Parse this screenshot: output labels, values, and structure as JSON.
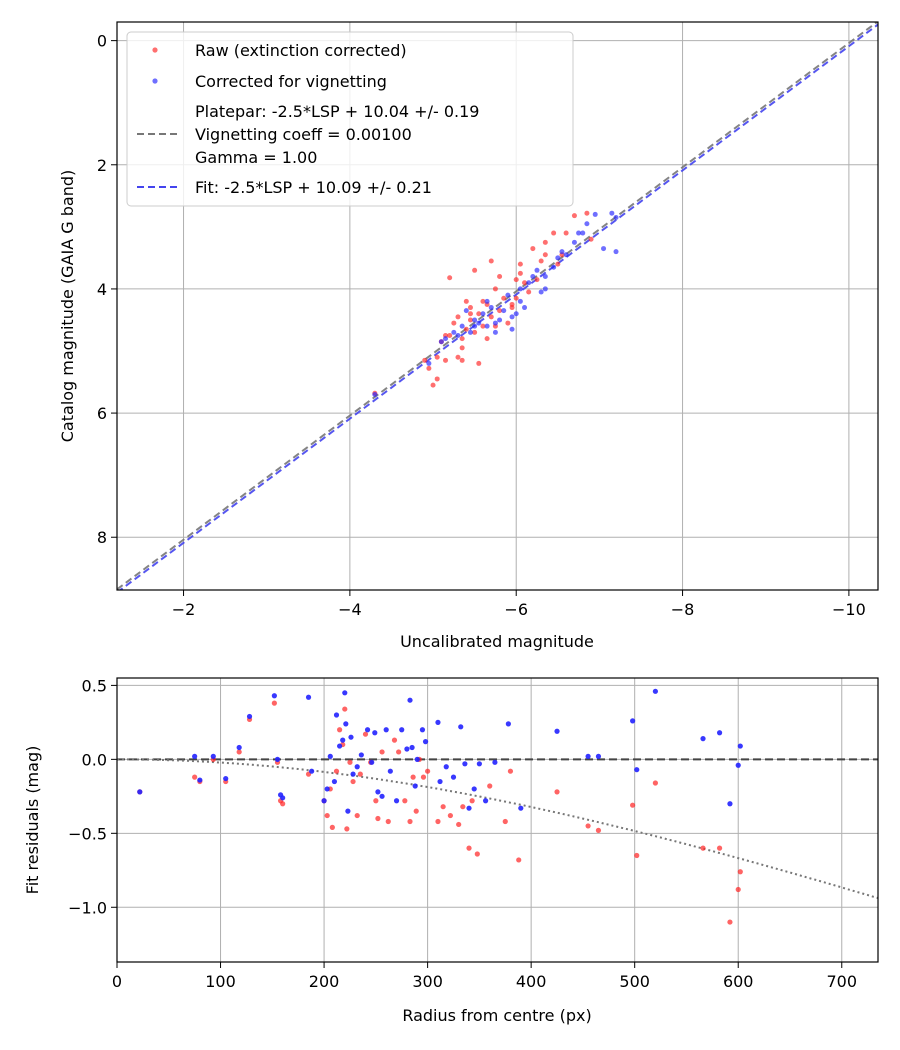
{
  "chart_data": [
    {
      "type": "scatter",
      "xlabel": "Uncalibrated magnitude",
      "ylabel": "Catalog magnitude (GAIA G band)",
      "xlim": [
        -1.2,
        -10.35
      ],
      "ylim": [
        8.85,
        -0.3
      ],
      "x_inverted": true,
      "y_inverted": true,
      "grid": true,
      "xticks": [
        -2,
        -4,
        -6,
        -8,
        -10
      ],
      "xtick_labels": [
        "−2",
        "−4",
        "−6",
        "−8",
        "−10"
      ],
      "yticks": [
        0,
        2,
        4,
        6,
        8
      ],
      "ytick_labels": [
        "0",
        "2",
        "4",
        "6",
        "8"
      ],
      "legend_position": "top-left",
      "legend": {
        "raw": "Raw (extinction corrected)",
        "corrected": "Corrected for vignetting",
        "platepar_line1": "Platepar: -2.5*LSP + 10.04 +/- 0.19",
        "platepar_line2": "Vignetting coeff = 0.00100",
        "platepar_line3": "Gamma = 1.00",
        "fit": "Fit: -2.5*LSP + 10.09 +/- 0.21"
      },
      "colors": {
        "raw": "#ff2222",
        "corrected": "#2222ff",
        "platepar": "#777777",
        "fit": "#4444ee"
      },
      "lines": [
        {
          "name": "platepar",
          "intercept": 10.04,
          "style": "dashed"
        },
        {
          "name": "fit",
          "intercept": 10.09,
          "style": "dashed"
        }
      ],
      "series": [
        {
          "name": "Raw (extinction corrected)",
          "points": [
            [
              -4.3,
              5.68
            ],
            [
              -4.9,
              5.15
            ],
            [
              -4.95,
              5.28
            ],
            [
              -5.0,
              5.55
            ],
            [
              -5.05,
              5.45
            ],
            [
              -5.05,
              5.1
            ],
            [
              -5.1,
              4.85
            ],
            [
              -5.15,
              4.75
            ],
            [
              -5.2,
              4.75
            ],
            [
              -5.2,
              3.82
            ],
            [
              -5.25,
              4.55
            ],
            [
              -5.3,
              5.1
            ],
            [
              -5.3,
              4.45
            ],
            [
              -5.35,
              4.8
            ],
            [
              -5.4,
              4.2
            ],
            [
              -5.4,
              4.65
            ],
            [
              -5.45,
              4.3
            ],
            [
              -5.45,
              4.5
            ],
            [
              -5.5,
              4.7
            ],
            [
              -5.5,
              3.7
            ],
            [
              -5.55,
              4.4
            ],
            [
              -5.6,
              4.6
            ],
            [
              -5.6,
              4.2
            ],
            [
              -5.65,
              4.8
            ],
            [
              -5.7,
              3.55
            ],
            [
              -5.7,
              4.45
            ],
            [
              -5.75,
              4.0
            ],
            [
              -5.75,
              4.6
            ],
            [
              -5.8,
              3.8
            ],
            [
              -5.8,
              4.35
            ],
            [
              -5.85,
              4.15
            ],
            [
              -5.9,
              4.55
            ],
            [
              -5.95,
              4.25
            ],
            [
              -6.0,
              3.85
            ],
            [
              -6.0,
              4.15
            ],
            [
              -6.05,
              3.75
            ],
            [
              -6.05,
              3.6
            ],
            [
              -6.1,
              3.9
            ],
            [
              -6.15,
              4.05
            ],
            [
              -6.2,
              3.35
            ],
            [
              -6.25,
              3.85
            ],
            [
              -6.3,
              3.55
            ],
            [
              -6.35,
              3.45
            ],
            [
              -6.35,
              3.25
            ],
            [
              -6.45,
              3.1
            ],
            [
              -6.5,
              3.6
            ],
            [
              -6.55,
              3.45
            ],
            [
              -6.6,
              3.1
            ],
            [
              -6.7,
              2.82
            ],
            [
              -6.85,
              2.78
            ],
            [
              -6.9,
              3.2
            ],
            [
              -5.55,
              5.2
            ],
            [
              -5.15,
              5.15
            ],
            [
              -5.35,
              5.15
            ],
            [
              -5.45,
              4.4
            ],
            [
              -5.65,
              4.25
            ],
            [
              -5.35,
              4.95
            ],
            [
              -5.95,
              4.3
            ]
          ]
        },
        {
          "name": "Corrected for vignetting",
          "points": [
            [
              -4.3,
              5.7
            ],
            [
              -4.95,
              5.2
            ],
            [
              -5.1,
              4.85
            ],
            [
              -5.15,
              4.8
            ],
            [
              -5.25,
              4.7
            ],
            [
              -5.3,
              4.75
            ],
            [
              -5.35,
              4.6
            ],
            [
              -5.4,
              4.35
            ],
            [
              -5.45,
              4.7
            ],
            [
              -5.5,
              4.5
            ],
            [
              -5.55,
              4.55
            ],
            [
              -5.6,
              4.4
            ],
            [
              -5.65,
              4.2
            ],
            [
              -5.7,
              4.3
            ],
            [
              -5.75,
              4.55
            ],
            [
              -5.8,
              4.5
            ],
            [
              -5.85,
              4.35
            ],
            [
              -5.9,
              4.1
            ],
            [
              -5.95,
              4.65
            ],
            [
              -6.0,
              4.4
            ],
            [
              -6.05,
              4.0
            ],
            [
              -6.1,
              4.3
            ],
            [
              -6.2,
              3.8
            ],
            [
              -6.25,
              3.7
            ],
            [
              -6.3,
              4.05
            ],
            [
              -6.35,
              3.8
            ],
            [
              -6.45,
              3.65
            ],
            [
              -6.5,
              3.5
            ],
            [
              -6.55,
              3.4
            ],
            [
              -6.6,
              3.45
            ],
            [
              -6.7,
              3.25
            ],
            [
              -6.75,
              3.1
            ],
            [
              -6.8,
              3.1
            ],
            [
              -6.85,
              2.95
            ],
            [
              -6.95,
              2.8
            ],
            [
              -7.05,
              3.35
            ],
            [
              -7.15,
              2.78
            ],
            [
              -7.2,
              2.85
            ],
            [
              -7.2,
              3.4
            ],
            [
              -5.65,
              4.6
            ],
            [
              -5.75,
              4.7
            ],
            [
              -5.95,
              4.45
            ],
            [
              -6.15,
              3.9
            ],
            [
              -6.35,
              4.0
            ],
            [
              -5.5,
              4.6
            ],
            [
              -6.05,
              4.2
            ]
          ]
        }
      ]
    },
    {
      "type": "scatter",
      "xlabel": "Radius from centre (px)",
      "ylabel": "Fit residuals (mag)",
      "xlim": [
        0,
        735
      ],
      "ylim": [
        -1.37,
        0.55
      ],
      "grid": true,
      "xticks": [
        0,
        100,
        200,
        300,
        400,
        500,
        600,
        700
      ],
      "xtick_labels": [
        "0",
        "100",
        "200",
        "300",
        "400",
        "500",
        "600",
        "700"
      ],
      "yticks": [
        0.5,
        0.0,
        -0.5,
        -1.0
      ],
      "ytick_labels": [
        "0.5",
        "0.0",
        "−0.5",
        "−1.0"
      ],
      "vignetting_curve": {
        "coeff": 0.001,
        "style": "dotted",
        "color": "#777777"
      },
      "zero_line": {
        "y": 0,
        "style": "dashed",
        "color": "#444444"
      },
      "series": [
        {
          "name": "Raw (extinction corrected)",
          "color": "#ff2222",
          "points": [
            [
              22,
              -0.22
            ],
            [
              75,
              -0.12
            ],
            [
              80,
              -0.15
            ],
            [
              93,
              0.0
            ],
            [
              105,
              -0.15
            ],
            [
              118,
              0.05
            ],
            [
              128,
              0.27
            ],
            [
              152,
              0.38
            ],
            [
              155,
              -0.02
            ],
            [
              158,
              -0.28
            ],
            [
              160,
              -0.3
            ],
            [
              185,
              -0.1
            ],
            [
              200,
              -0.28
            ],
            [
              203,
              -0.38
            ],
            [
              206,
              -0.2
            ],
            [
              208,
              -0.46
            ],
            [
              212,
              -0.08
            ],
            [
              215,
              0.2
            ],
            [
              218,
              0.1
            ],
            [
              220,
              0.34
            ],
            [
              222,
              -0.47
            ],
            [
              225,
              -0.02
            ],
            [
              228,
              -0.15
            ],
            [
              232,
              -0.38
            ],
            [
              235,
              -0.1
            ],
            [
              240,
              0.17
            ],
            [
              245,
              -0.02
            ],
            [
              250,
              -0.28
            ],
            [
              252,
              -0.4
            ],
            [
              256,
              0.05
            ],
            [
              262,
              -0.42
            ],
            [
              268,
              0.13
            ],
            [
              272,
              0.05
            ],
            [
              278,
              -0.28
            ],
            [
              283,
              -0.42
            ],
            [
              286,
              -0.12
            ],
            [
              289,
              -0.35
            ],
            [
              292,
              0.0
            ],
            [
              296,
              -0.12
            ],
            [
              300,
              -0.08
            ],
            [
              310,
              -0.42
            ],
            [
              315,
              -0.32
            ],
            [
              322,
              -0.38
            ],
            [
              330,
              -0.44
            ],
            [
              334,
              -0.32
            ],
            [
              340,
              -0.6
            ],
            [
              343,
              -0.28
            ],
            [
              348,
              -0.64
            ],
            [
              360,
              -0.18
            ],
            [
              375,
              -0.42
            ],
            [
              380,
              -0.08
            ],
            [
              388,
              -0.68
            ],
            [
              425,
              -0.22
            ],
            [
              455,
              -0.45
            ],
            [
              465,
              -0.48
            ],
            [
              498,
              -0.31
            ],
            [
              502,
              -0.65
            ],
            [
              520,
              -0.16
            ],
            [
              566,
              -0.6
            ],
            [
              582,
              -0.6
            ],
            [
              592,
              -1.1
            ],
            [
              600,
              -0.88
            ],
            [
              602,
              -0.76
            ]
          ]
        },
        {
          "name": "Corrected for vignetting",
          "color": "#2222ff",
          "points": [
            [
              22,
              -0.22
            ],
            [
              75,
              0.02
            ],
            [
              80,
              -0.14
            ],
            [
              93,
              0.02
            ],
            [
              105,
              -0.13
            ],
            [
              118,
              0.08
            ],
            [
              128,
              0.29
            ],
            [
              152,
              0.43
            ],
            [
              155,
              0.0
            ],
            [
              158,
              -0.24
            ],
            [
              160,
              -0.26
            ],
            [
              185,
              0.42
            ],
            [
              188,
              -0.08
            ],
            [
              200,
              -0.28
            ],
            [
              203,
              -0.2
            ],
            [
              206,
              0.02
            ],
            [
              210,
              -0.15
            ],
            [
              212,
              0.3
            ],
            [
              215,
              0.09
            ],
            [
              218,
              0.13
            ],
            [
              220,
              0.45
            ],
            [
              221,
              0.24
            ],
            [
              223,
              -0.35
            ],
            [
              226,
              0.15
            ],
            [
              228,
              -0.1
            ],
            [
              232,
              -0.05
            ],
            [
              236,
              0.03
            ],
            [
              242,
              0.2
            ],
            [
              246,
              -0.02
            ],
            [
              249,
              0.18
            ],
            [
              252,
              -0.22
            ],
            [
              256,
              -0.25
            ],
            [
              260,
              0.2
            ],
            [
              264,
              -0.08
            ],
            [
              270,
              -0.28
            ],
            [
              275,
              0.2
            ],
            [
              280,
              0.07
            ],
            [
              283,
              0.4
            ],
            [
              285,
              0.08
            ],
            [
              288,
              -0.18
            ],
            [
              290,
              0.0
            ],
            [
              295,
              0.2
            ],
            [
              298,
              0.12
            ],
            [
              310,
              0.25
            ],
            [
              312,
              -0.15
            ],
            [
              318,
              -0.05
            ],
            [
              325,
              -0.12
            ],
            [
              332,
              0.22
            ],
            [
              336,
              -0.03
            ],
            [
              340,
              -0.33
            ],
            [
              345,
              -0.2
            ],
            [
              350,
              -0.03
            ],
            [
              356,
              -0.28
            ],
            [
              365,
              -0.02
            ],
            [
              378,
              0.24
            ],
            [
              390,
              -0.33
            ],
            [
              425,
              0.19
            ],
            [
              455,
              0.02
            ],
            [
              465,
              0.02
            ],
            [
              498,
              0.26
            ],
            [
              502,
              -0.07
            ],
            [
              520,
              0.46
            ],
            [
              566,
              0.14
            ],
            [
              582,
              0.18
            ],
            [
              592,
              -0.3
            ],
            [
              600,
              -0.04
            ],
            [
              602,
              0.09
            ]
          ]
        }
      ]
    }
  ]
}
